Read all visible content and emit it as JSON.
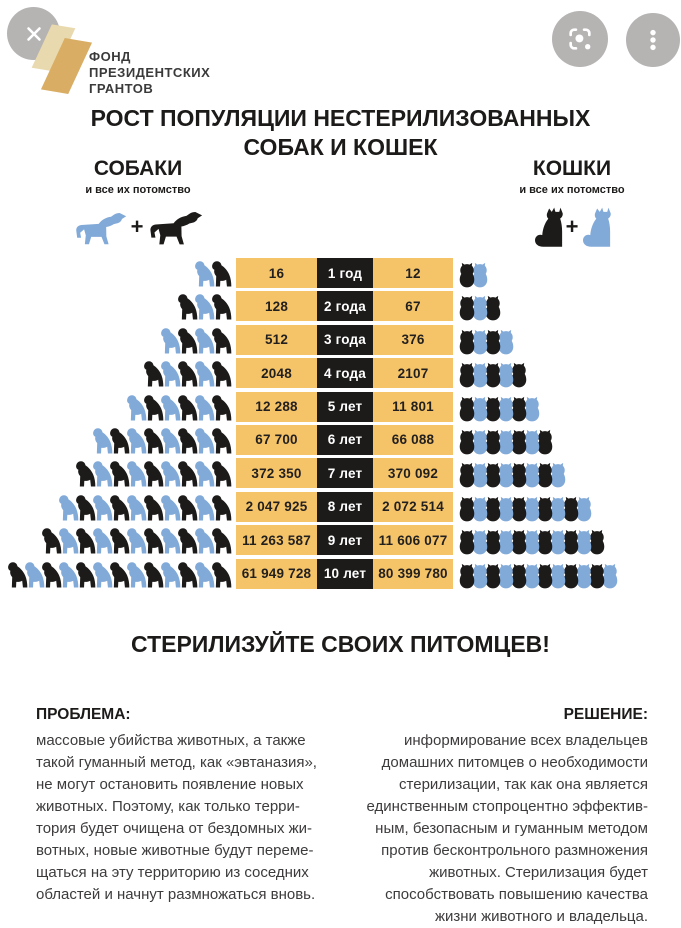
{
  "viewer": {
    "close_icon": "close-icon",
    "lens_icon": "lens-icon",
    "menu_icon": "kebab-menu-icon"
  },
  "logo": {
    "text": "ФОНД\nПРЕЗИДЕНТСКИХ\nГРАНТОВ"
  },
  "header": {
    "title": "РОСТ ПОПУЛЯЦИИ НЕСТЕРИЛИЗОВАННЫХ\nСОБАК И КОШЕК"
  },
  "dogs_header": {
    "label": "СОБАКИ",
    "sublabel": "и все их потомство",
    "plus": "+"
  },
  "cats_header": {
    "label": "КОШКИ",
    "sublabel": "и все их потомство",
    "plus": "+"
  },
  "colors": {
    "band_yellow": "#f5c468",
    "ink_black": "#1d1b1a",
    "ink_blue": "#82aad8",
    "button_gray": "#b6b3b3"
  },
  "chart_data": {
    "type": "table",
    "title": "РОСТ ПОПУЛЯЦИИ НЕСТЕРИЛИЗОВАННЫХ СОБАК И КОШЕК",
    "columns": [
      "собаки и все их потомство",
      "возраст",
      "кошки и все их потомство"
    ],
    "categories": [
      "1 год",
      "2 года",
      "3 года",
      "4 года",
      "5 лет",
      "6 лет",
      "7 лет",
      "8 лет",
      "9 лет",
      "10 лет"
    ],
    "series": [
      {
        "name": "собаки",
        "values": [
          16,
          128,
          512,
          2048,
          12288,
          67700,
          372350,
          2047925,
          11263587,
          61949728
        ]
      },
      {
        "name": "кошки",
        "values": [
          12,
          67,
          376,
          2107,
          11801,
          66088,
          370092,
          2072514,
          11606077,
          80399780
        ]
      }
    ],
    "rows": [
      {
        "dogs": "16",
        "age": "1 год",
        "cats": "12",
        "dog_icons": 2,
        "cat_icons": 2
      },
      {
        "dogs": "128",
        "age": "2 года",
        "cats": "67",
        "dog_icons": 3,
        "cat_icons": 3
      },
      {
        "dogs": "512",
        "age": "3 года",
        "cats": "376",
        "dog_icons": 4,
        "cat_icons": 4
      },
      {
        "dogs": "2048",
        "age": "4 года",
        "cats": "2107",
        "dog_icons": 5,
        "cat_icons": 5
      },
      {
        "dogs": "12 288",
        "age": "5 лет",
        "cats": "11 801",
        "dog_icons": 6,
        "cat_icons": 6
      },
      {
        "dogs": "67 700",
        "age": "6 лет",
        "cats": "66 088",
        "dog_icons": 8,
        "cat_icons": 7
      },
      {
        "dogs": "372 350",
        "age": "7 лет",
        "cats": "370 092",
        "dog_icons": 9,
        "cat_icons": 8
      },
      {
        "dogs": "2 047 925",
        "age": "8 лет",
        "cats": "2 072 514",
        "dog_icons": 10,
        "cat_icons": 10
      },
      {
        "dogs": "11 263 587",
        "age": "9 лет",
        "cats": "11 606 077",
        "dog_icons": 11,
        "cat_icons": 11
      },
      {
        "dogs": "61 949 728",
        "age": "10 лет",
        "cats": "80 399 780",
        "dog_icons": 13,
        "cat_icons": 12
      }
    ],
    "legend_position": "none",
    "grid": false
  },
  "cta": {
    "title": "СТЕРИЛИЗУЙТЕ СВОИХ ПИТОМЦЕВ!"
  },
  "problem": {
    "heading": "ПРОБЛЕМА:",
    "body": "массовые убийства животных, а также\nтакой гуманный метод, как «эвтаназия»,\nне могут остановить появление новых\nживотных. Поэтому, как только терри-\nтория будет очищена от бездомных жи-\nвотных, новые животные будут переме-\nщаться на эту территорию из соседних\nобластей и начнут размножаться вновь."
  },
  "solution": {
    "heading": "РЕШЕНИЕ:",
    "body": "информирование всех владельцев\nдомашних питомцев о необходимости\nстерилизации, так как она является\nединственным стопроцентно эффектив-\nным, безопасным и гуманным методом\nпротив бесконтрольного размножения\nживотных. Стерилизация будет\nспособствовать повышению качества\nжизни животного и владельца."
  }
}
